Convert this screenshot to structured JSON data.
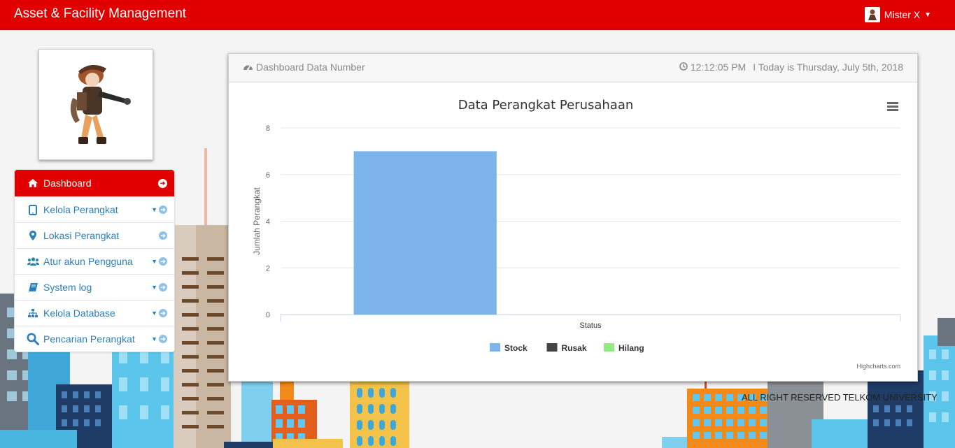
{
  "header": {
    "brand": "Asset & Facility Management",
    "user_name": "Mister X"
  },
  "sidebar": {
    "items": [
      {
        "label": "Dashboard",
        "icon": "home-icon",
        "active": true,
        "dropdown": false
      },
      {
        "label": "Kelola Perangkat",
        "icon": "tablet-icon",
        "active": false,
        "dropdown": true
      },
      {
        "label": "Lokasi Perangkat",
        "icon": "map-marker-icon",
        "active": false,
        "dropdown": false
      },
      {
        "label": "Atur akun Pengguna",
        "icon": "users-icon",
        "active": false,
        "dropdown": true
      },
      {
        "label": "System log",
        "icon": "book-icon",
        "active": false,
        "dropdown": true
      },
      {
        "label": "Kelola Database",
        "icon": "sitemap-icon",
        "active": false,
        "dropdown": true
      },
      {
        "label": "Pencarian Perangkat",
        "icon": "search-icon",
        "active": false,
        "dropdown": true
      }
    ]
  },
  "panel": {
    "title": "Dashboard Data Number",
    "time": "12:12:05 PM",
    "date_text": "I Today is Thursday, July 5th, 2018"
  },
  "chart_data": {
    "type": "bar",
    "title": "Data Perangkat Perusahaan",
    "xlabel": "",
    "ylabel": "Jumlah Perangkat",
    "categories": [
      "Status"
    ],
    "series": [
      {
        "name": "Stock",
        "values": [
          7
        ],
        "color": "#7cb5ec"
      },
      {
        "name": "Rusak",
        "values": [
          0
        ],
        "color": "#434348"
      },
      {
        "name": "Hilang",
        "values": [
          0
        ],
        "color": "#90ed7d"
      }
    ],
    "ylim": [
      0,
      8
    ],
    "yticks": [
      0,
      2,
      4,
      6,
      8
    ],
    "grid": true,
    "legend": "bottom-center",
    "credits": "Highcharts.com"
  },
  "footer": {
    "text": "ALL RIGHT RESERVED TELKOM UNIVERSITY"
  },
  "colors": {
    "header_red": "#e10000",
    "link_blue": "#2a7fbf"
  }
}
